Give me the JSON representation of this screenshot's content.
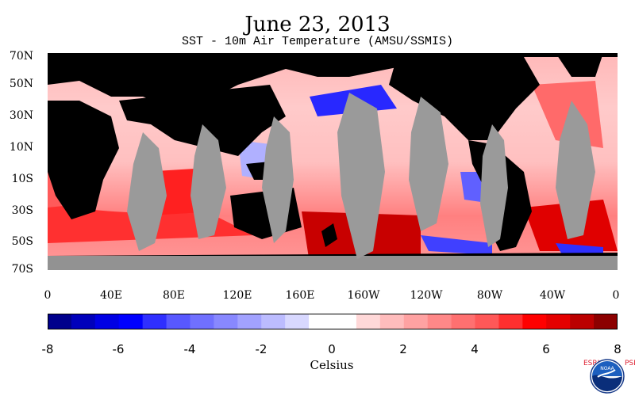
{
  "header": {
    "title": "June 23, 2013",
    "subtitle": "SST - 10m Air Temperature (AMSU/SSMIS)"
  },
  "map": {
    "lat_labels": [
      "70N",
      "50N",
      "30N",
      "10N",
      "10S",
      "30S",
      "50S",
      "70S"
    ],
    "lon_labels": [
      "0",
      "40E",
      "80E",
      "120E",
      "160E",
      "160W",
      "120W",
      "80W",
      "40W",
      "0"
    ],
    "colors": {
      "land": "#000000",
      "missing": "#9a9a9a"
    }
  },
  "colorbar": {
    "ticks": [
      "-8",
      "-6",
      "-4",
      "-2",
      "0",
      "2",
      "4",
      "6",
      "8"
    ],
    "label": "Celsius",
    "range": [
      -8,
      8
    ],
    "colors": [
      "#00008c",
      "#0000bb",
      "#0000e4",
      "#0000ff",
      "#2f2fff",
      "#5858ff",
      "#7070ff",
      "#8888ff",
      "#a2a2ff",
      "#bcbcff",
      "#d8d8ff",
      "#ffffff",
      "#ffffff",
      "#ffd8d8",
      "#ffbcbc",
      "#ffa2a2",
      "#ff8888",
      "#ff7070",
      "#ff5858",
      "#ff2f2f",
      "#ff0000",
      "#e40000",
      "#bb0000",
      "#8c0000"
    ]
  },
  "logo": {
    "left_text": "ESRL",
    "right_text": "PSD",
    "badge_text": "NOAA"
  }
}
